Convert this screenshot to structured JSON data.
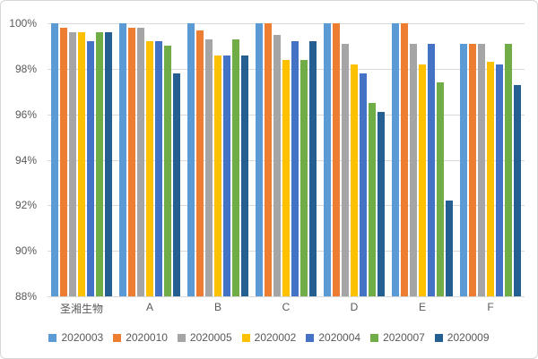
{
  "chart_data": {
    "type": "bar",
    "title": "",
    "categories": [
      "圣湘生物",
      "A",
      "B",
      "C",
      "D",
      "E",
      "F"
    ],
    "series": [
      {
        "name": "2020003",
        "color": "#5B9BD5",
        "values": [
          100,
          100,
          100,
          100,
          100,
          100,
          99.1
        ]
      },
      {
        "name": "2020010",
        "color": "#ED7D31",
        "values": [
          99.8,
          99.8,
          99.7,
          100,
          100,
          100,
          99.1
        ]
      },
      {
        "name": "2020005",
        "color": "#A5A5A5",
        "values": [
          99.6,
          99.8,
          99.3,
          99.5,
          99.1,
          99.1,
          99.1
        ]
      },
      {
        "name": "2020002",
        "color": "#FFC000",
        "values": [
          99.6,
          99.2,
          98.6,
          98.4,
          98.2,
          98.2,
          98.3
        ]
      },
      {
        "name": "2020004",
        "color": "#4472C4",
        "values": [
          99.2,
          99.2,
          98.6,
          99.2,
          97.8,
          99.1,
          98.2
        ]
      },
      {
        "name": "2020007",
        "color": "#70AD47",
        "values": [
          99.6,
          99.0,
          99.3,
          98.4,
          96.5,
          97.4,
          99.1
        ]
      },
      {
        "name": "2020009",
        "color": "#255E91",
        "values": [
          99.6,
          97.8,
          98.6,
          99.2,
          96.1,
          92.2,
          97.3
        ]
      }
    ],
    "ylim": [
      88,
      100
    ],
    "yticks": [
      {
        "label": "100%",
        "value": 100
      },
      {
        "label": "98%",
        "value": 98
      },
      {
        "label": "96%",
        "value": 96
      },
      {
        "label": "94%",
        "value": 94
      },
      {
        "label": "92%",
        "value": 92
      },
      {
        "label": "90%",
        "value": 90
      },
      {
        "label": "88%",
        "value": 88
      }
    ],
    "grid": true,
    "legend_position": "bottom",
    "xlabel": "",
    "ylabel": ""
  },
  "colors": {
    "background": "#FFFFFF",
    "frame_border": "#D6D6D6",
    "gridline": "#D9D9D9",
    "axis_line": "#BFBFBF",
    "label_text": "#595959"
  }
}
